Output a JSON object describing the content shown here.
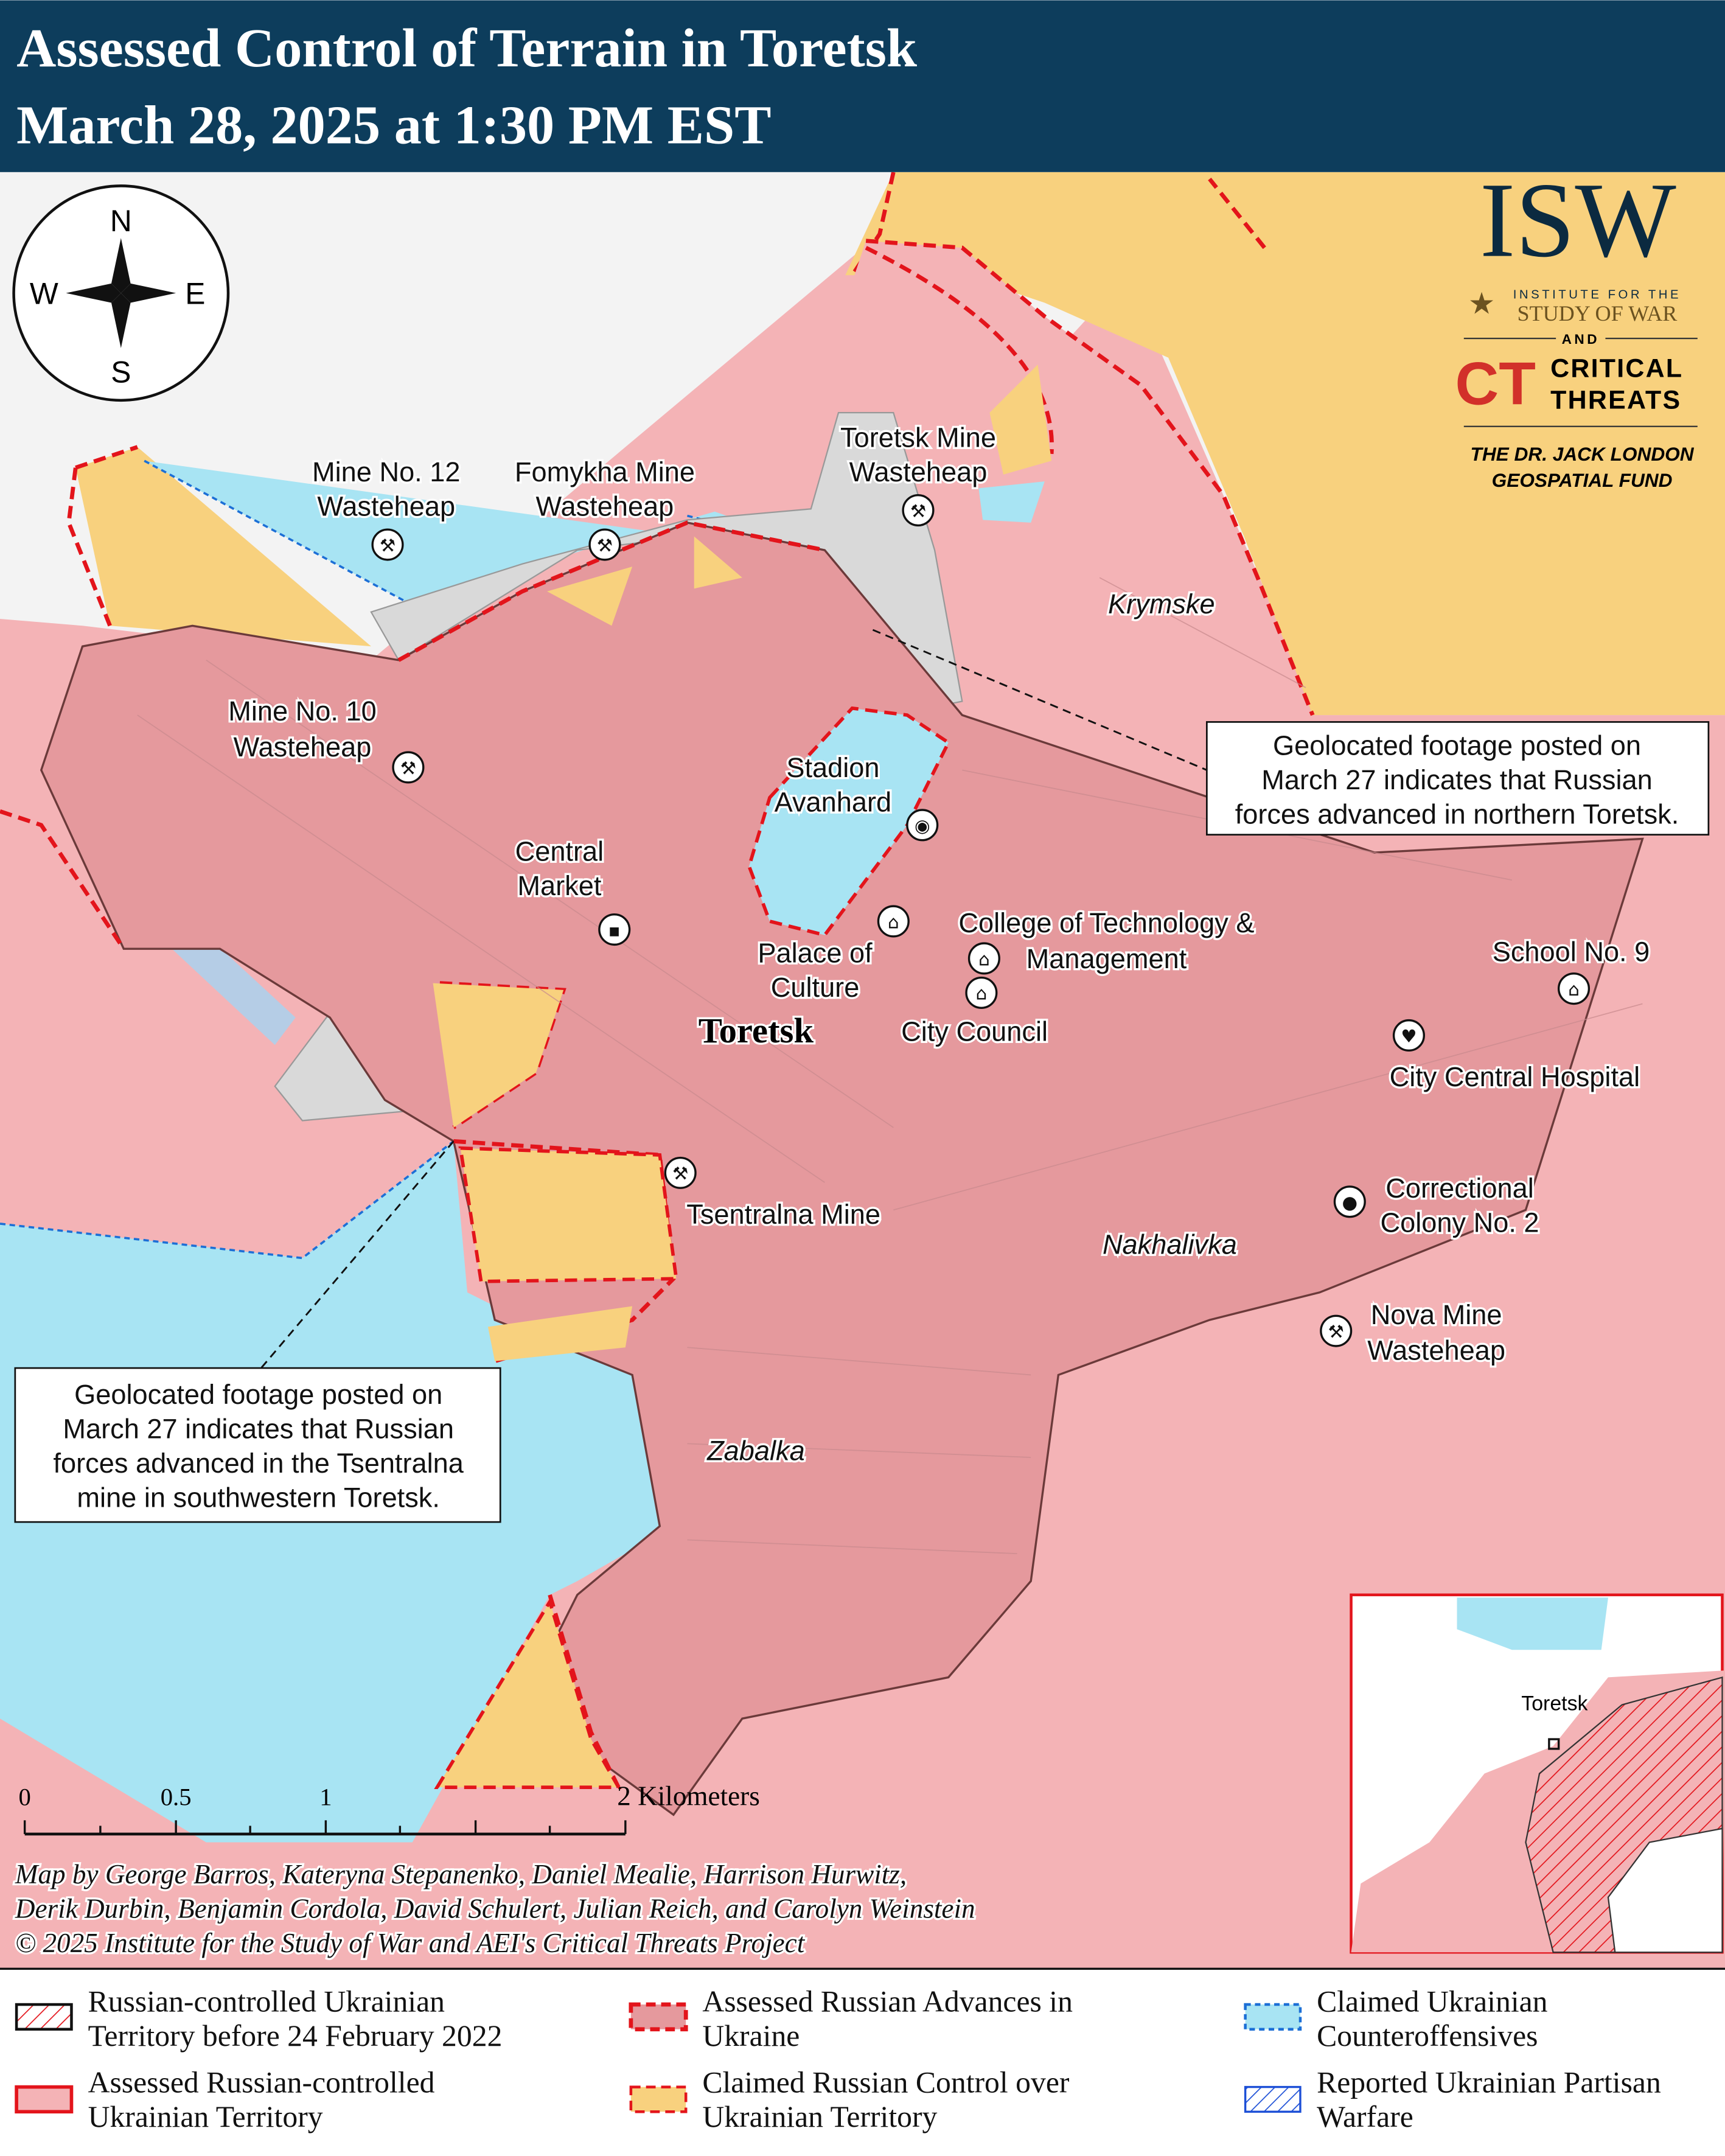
{
  "header": {
    "title_line1": "Assessed Control of Terrain in Toretsk",
    "title_line2": "March 28, 2025 at 1:30 PM EST",
    "background_color": "#0d3d5c"
  },
  "compass": {
    "n": "N",
    "s": "S",
    "e": "E",
    "w": "W"
  },
  "logo": {
    "isw": "ISW",
    "isw_sub1": "INSTITUTE FOR THE",
    "isw_sub2": "STUDY OF WAR",
    "and": "AND",
    "ct_mark": "CT",
    "ct_line1": "CRITICAL",
    "ct_line2": "THREATS",
    "fund_line1": "THE DR. JACK LONDON",
    "fund_line2": "GEOSPATIAL FUND"
  },
  "places": {
    "mine12": [
      "Mine No. 12",
      "Wasteheap"
    ],
    "fomykha": [
      "Fomykha Mine",
      "Wasteheap"
    ],
    "toretsk_mine": [
      "Toretsk Mine",
      "Wasteheap"
    ],
    "krymske": "Krymske",
    "mine10": [
      "Mine No. 10",
      "Wasteheap"
    ],
    "stadion": [
      "Stadion",
      "Avanhard"
    ],
    "central_market": [
      "Central",
      "Market"
    ],
    "palace": [
      "Palace of",
      "Culture"
    ],
    "college": [
      "College of Technology &",
      "Management"
    ],
    "city_council": "City Council",
    "toretsk": "Toretsk",
    "school9": "School No. 9",
    "hospital": "City Central Hospital",
    "correctional": [
      "Correctional",
      "Colony No. 2"
    ],
    "tsentralna": "Tsentralna Mine",
    "nakhalivka": "Nakhalivka",
    "nova_mine": [
      "Nova Mine",
      "Wasteheap"
    ],
    "zabalka": "Zabalka"
  },
  "callouts": {
    "north": [
      "Geolocated footage posted on",
      "March 27 indicates that Russian",
      "forces advanced in northern Toretsk."
    ],
    "southwest": [
      "Geolocated footage posted on",
      "March 27 indicates that Russian",
      "forces advanced in the Tsentralna",
      "mine in southwestern Toretsk."
    ]
  },
  "scale_bar": {
    "ticks": [
      "0",
      "0.5",
      "1",
      "2 Kilometers"
    ]
  },
  "credits": [
    "Map by George Barros, Kateryna Stepanenko, Daniel Mealie, Harrison Hurwitz,",
    "Derik Durbin, Benjamin Cordola, David Schulert, Julian Reich, and Carolyn Weinstein",
    "© 2025 Institute for the Study of War and AEI's Critical Threats Project"
  ],
  "inset": {
    "label": "Toretsk"
  },
  "legend": [
    {
      "line1": "Russian-controlled Ukrainian",
      "line2": "Territory before 24 February 2022"
    },
    {
      "line1": "Assessed Russian-controlled",
      "line2": "Ukrainian Territory"
    },
    {
      "line1": "Assessed Russian Advances in",
      "line2": "Ukraine"
    },
    {
      "line1": "Claimed Russian Control over",
      "line2": "Ukrainian Territory"
    },
    {
      "line1": "Claimed Ukrainian",
      "line2": "Counteroffensives"
    },
    {
      "line1": "Reported Ukrainian Partisan",
      "line2": "Warfare"
    }
  ],
  "colors": {
    "russian_controlled": "#f4b3b6",
    "russian_advance": "#e5999d",
    "advance_border": "#e3141b",
    "claimed_russian": "#f8d17e",
    "ukrainian_counter": "#a8e4f3",
    "urban": "#d9d9d9"
  }
}
